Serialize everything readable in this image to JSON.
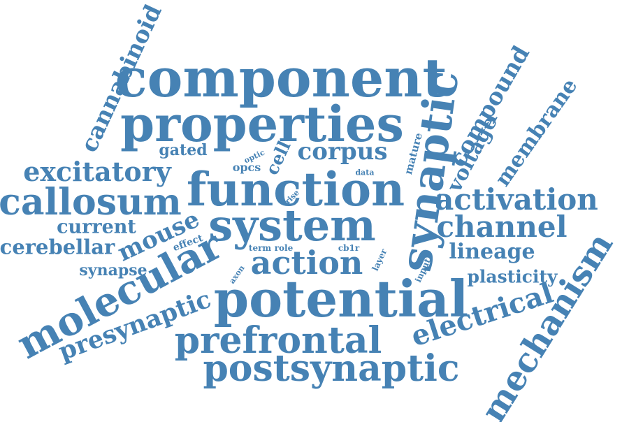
{
  "word_color": "#4682b4",
  "background_color": "#ffffff",
  "words": [
    {
      "id": "component",
      "text": "component"
    },
    {
      "id": "properties",
      "text": "properties"
    },
    {
      "id": "cannabinoid",
      "text": "cannabinoid"
    },
    {
      "id": "synaptic",
      "text": "synaptic"
    },
    {
      "id": "compound",
      "text": "compound"
    },
    {
      "id": "membrane",
      "text": "membrane"
    },
    {
      "id": "voltage",
      "text": "voltage"
    },
    {
      "id": "mature",
      "text": "mature"
    },
    {
      "id": "gated",
      "text": "gated"
    },
    {
      "id": "corpus",
      "text": "corpus"
    },
    {
      "id": "cell",
      "text": "cell"
    },
    {
      "id": "optic",
      "text": "optic"
    },
    {
      "id": "opcs",
      "text": "opcs"
    },
    {
      "id": "data",
      "text": "data"
    },
    {
      "id": "excitatory",
      "text": "excitatory"
    },
    {
      "id": "function",
      "text": "function"
    },
    {
      "id": "callosum",
      "text": "callosum"
    },
    {
      "id": "rise",
      "text": "rise"
    },
    {
      "id": "activation",
      "text": "activation"
    },
    {
      "id": "system",
      "text": "system"
    },
    {
      "id": "current",
      "text": "current"
    },
    {
      "id": "mouse",
      "text": "mouse"
    },
    {
      "id": "channel",
      "text": "channel"
    },
    {
      "id": "cerebellar",
      "text": "cerebellar"
    },
    {
      "id": "effect",
      "text": "effect"
    },
    {
      "id": "term",
      "text": "term"
    },
    {
      "id": "role",
      "text": "role"
    },
    {
      "id": "cb1r",
      "text": "cb1r"
    },
    {
      "id": "lineage",
      "text": "lineage"
    },
    {
      "id": "layer",
      "text": "layer"
    },
    {
      "id": "input",
      "text": "input"
    },
    {
      "id": "action",
      "text": "action"
    },
    {
      "id": "synapse",
      "text": "synapse"
    },
    {
      "id": "axon",
      "text": "axon"
    },
    {
      "id": "molecular",
      "text": "molecular"
    },
    {
      "id": "plasticity",
      "text": "plasticity"
    },
    {
      "id": "mechanism",
      "text": "mechanism"
    },
    {
      "id": "potential",
      "text": "potential"
    },
    {
      "id": "presynaptic",
      "text": "presynaptic"
    },
    {
      "id": "electrical",
      "text": "electrical"
    },
    {
      "id": "prefrontal",
      "text": "prefrontal"
    },
    {
      "id": "postsynaptic",
      "text": "postsynaptic"
    }
  ]
}
